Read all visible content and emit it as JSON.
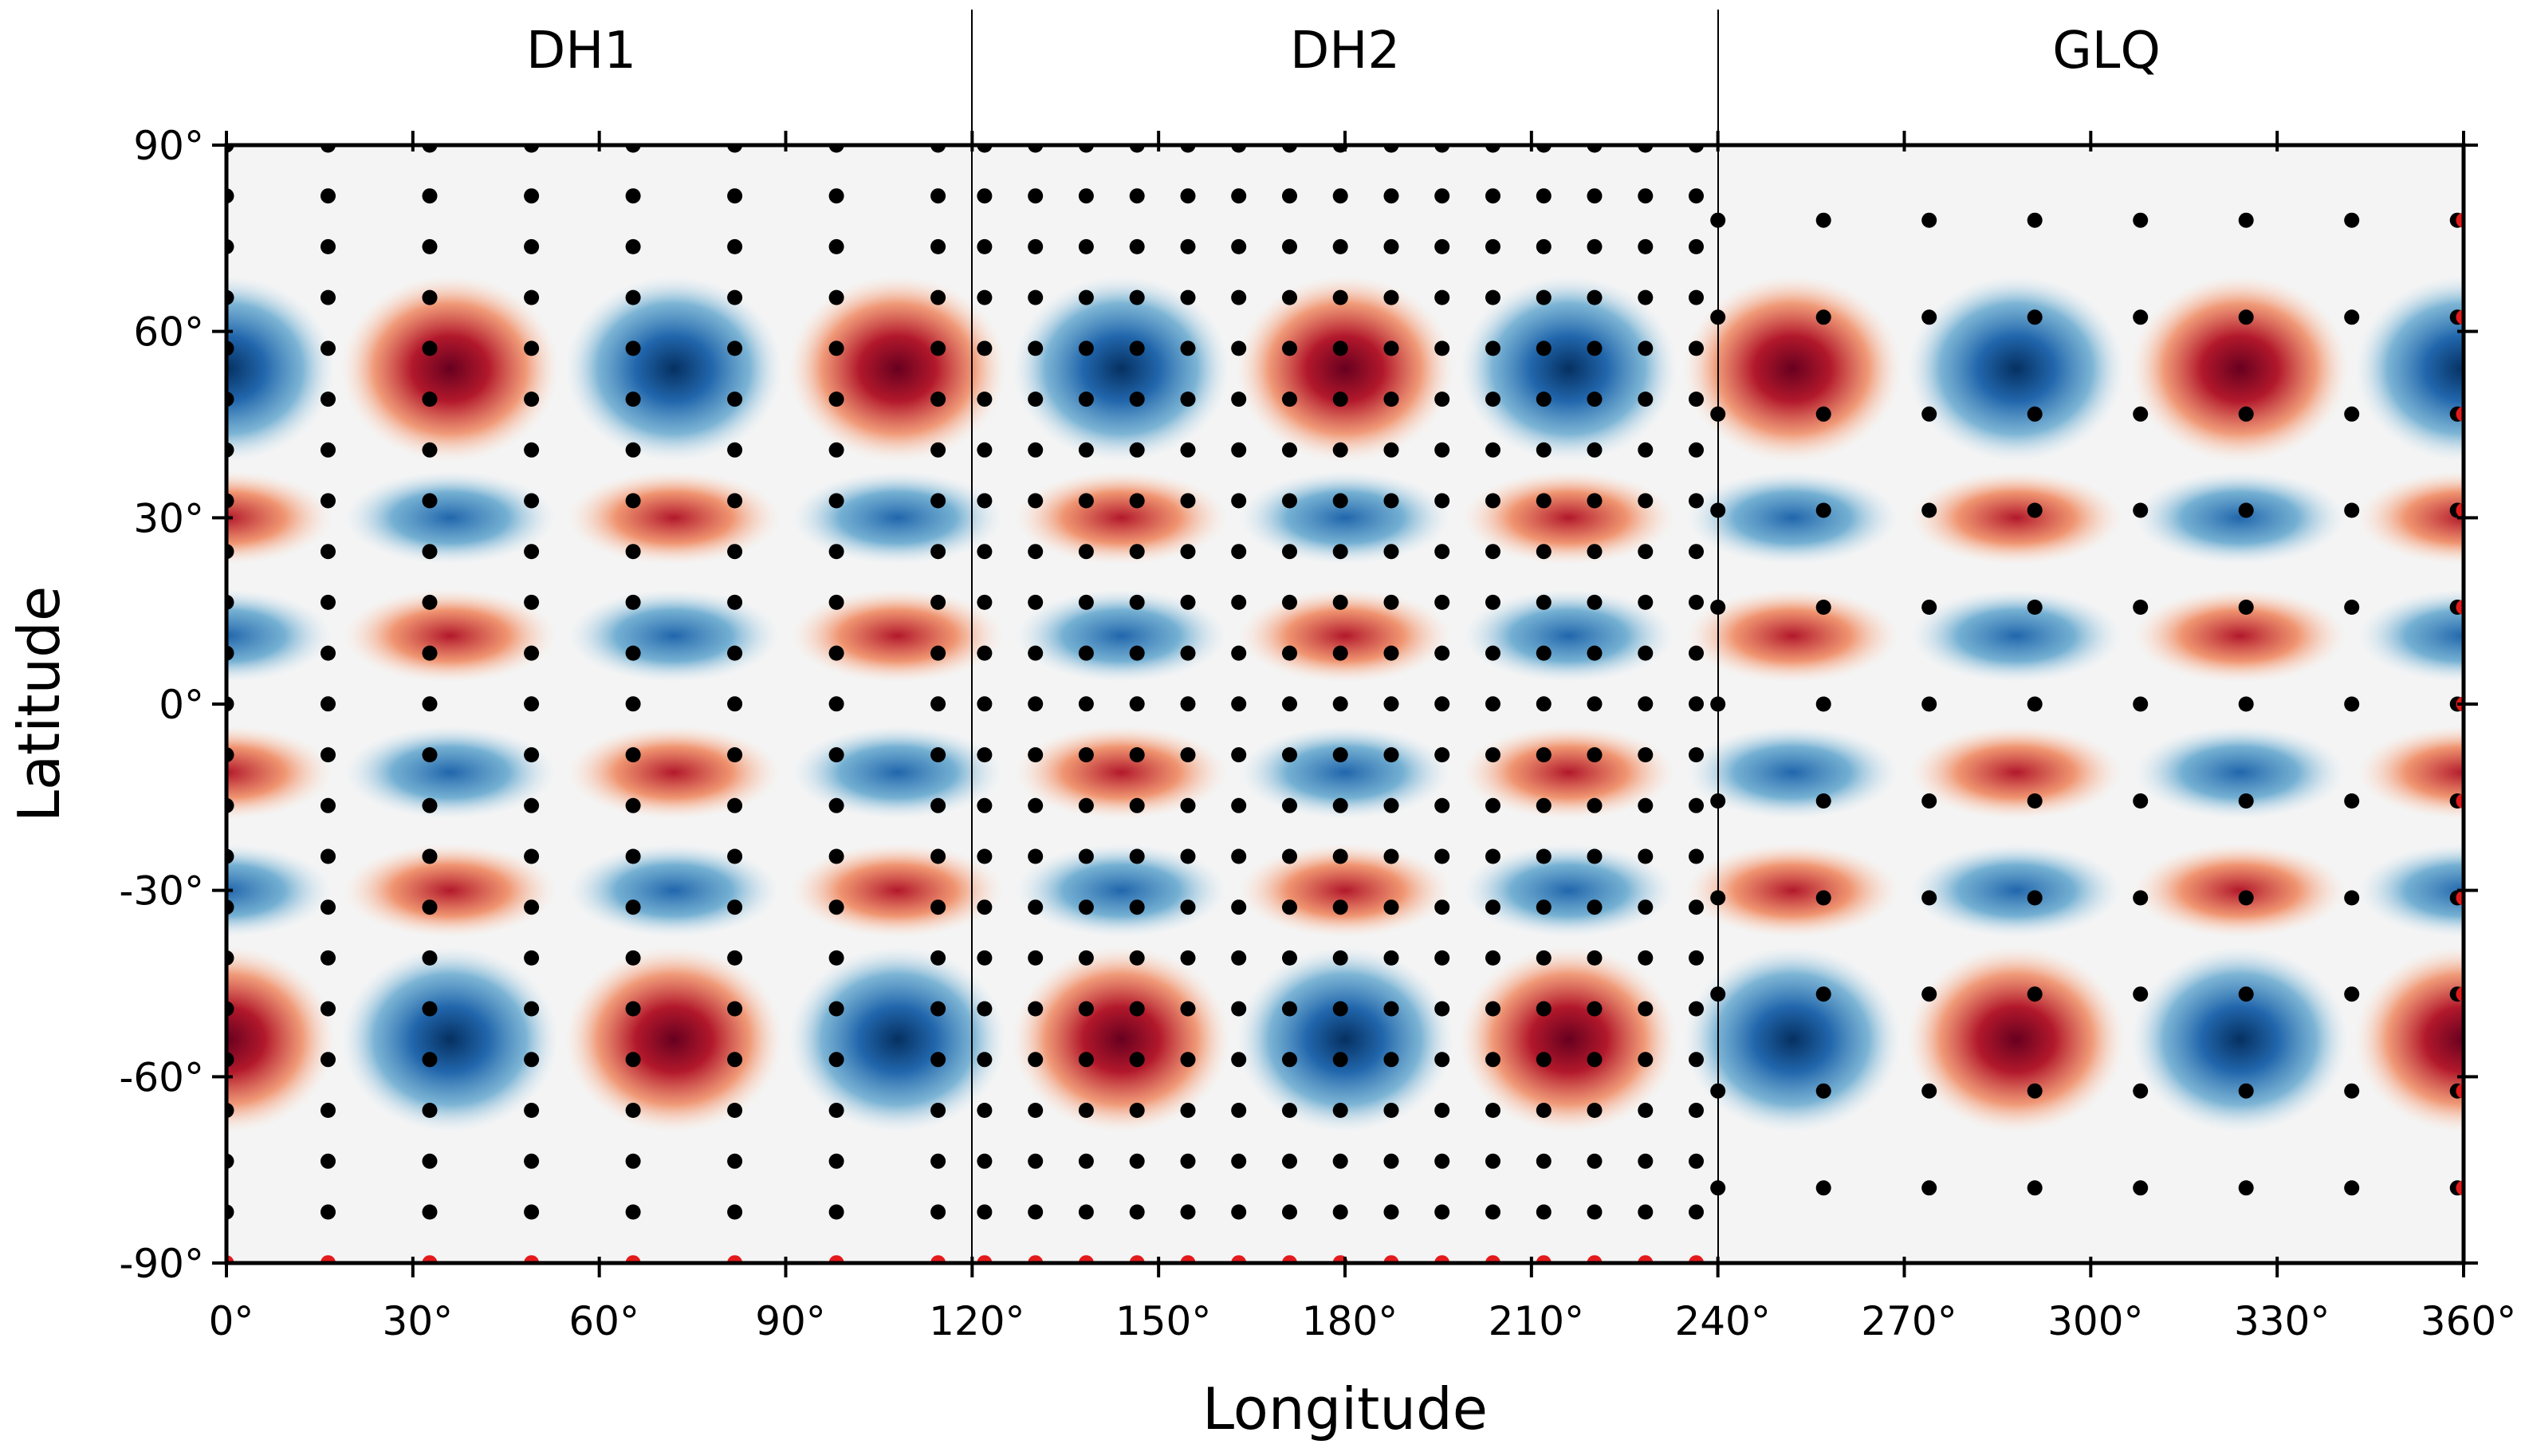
{
  "chart_data": {
    "type": "heatmap",
    "title": "",
    "xlabel": "Longitude",
    "ylabel": "Latitude",
    "xlim": [
      0,
      360
    ],
    "ylim": [
      -90,
      90
    ],
    "panels": [
      {
        "name": "DH1",
        "lon_range": [
          0,
          120
        ]
      },
      {
        "name": "DH2",
        "lon_range": [
          120,
          240
        ]
      },
      {
        "name": "GLQ",
        "lon_range": [
          240,
          360
        ]
      }
    ],
    "x_ticks": [
      {
        "value": 0,
        "label": "0°"
      },
      {
        "value": 30,
        "label": "30°"
      },
      {
        "value": 60,
        "label": "60°"
      },
      {
        "value": 90,
        "label": "90°"
      },
      {
        "value": 120,
        "label": "120°"
      },
      {
        "value": 150,
        "label": "150°"
      },
      {
        "value": 180,
        "label": "180°"
      },
      {
        "value": 210,
        "label": "210°"
      },
      {
        "value": 240,
        "label": "240°"
      },
      {
        "value": 270,
        "label": "270°"
      },
      {
        "value": 300,
        "label": "300°"
      },
      {
        "value": 330,
        "label": "330°"
      },
      {
        "value": 360,
        "label": "360°"
      }
    ],
    "y_ticks": [
      {
        "value": 90,
        "label": "90°"
      },
      {
        "value": 60,
        "label": "60°"
      },
      {
        "value": 30,
        "label": "30°"
      },
      {
        "value": 0,
        "label": "0°"
      },
      {
        "value": -30,
        "label": "-30°"
      },
      {
        "value": -60,
        "label": "-60°"
      },
      {
        "value": -90,
        "label": "-90°"
      }
    ],
    "field": {
      "description_free": true,
      "lon_wavenumber": 5,
      "lat_pattern": "sin(6*lat)*cos(lat)",
      "colormap": "RdBu_r"
    },
    "grids": {
      "DH1": {
        "lon_step": 16.36,
        "lat_step": 8.18,
        "lon_start": 0,
        "lat_start": 90,
        "lon_count": 8,
        "lat_count": 23
      },
      "DH2": {
        "lon_step": 8.18,
        "lat_step": 8.18,
        "lon_start": 122,
        "lat_start": 90,
        "lon_count": 15,
        "lat_count": 23
      },
      "GLQ": {
        "lon_step": 17,
        "lat_values": [
          77.9,
          62.3,
          46.7,
          31.2,
          15.6,
          0,
          -15.6,
          -31.2,
          -46.7,
          -62.3,
          -77.9
        ],
        "lon_start": 240,
        "lon_count": 8,
        "edge_lon": 360
      }
    },
    "colors": {
      "red": "#d7191c",
      "blue": "#2166ac",
      "point_black": "#000000",
      "point_red": "#e31a1c",
      "background": "#f4f4f4"
    }
  }
}
